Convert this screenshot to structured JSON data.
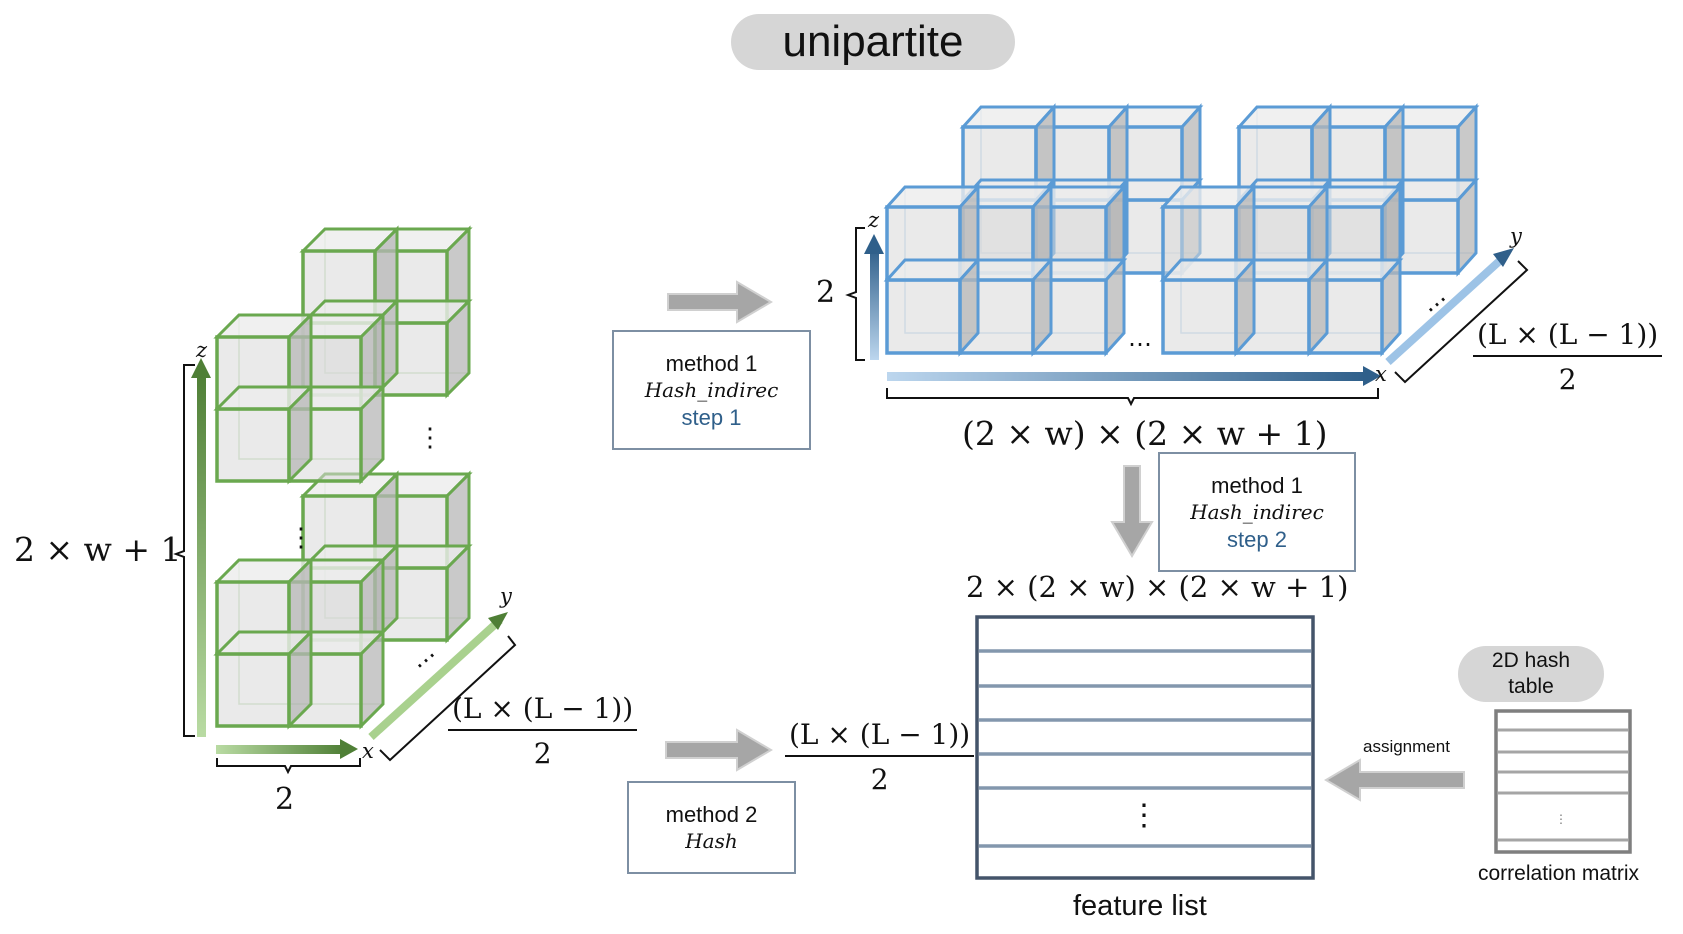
{
  "title": "unipartite",
  "method1_step1": {
    "method": "method 1",
    "func": "Hash_indirec",
    "step": "step 1"
  },
  "method1_step2": {
    "method": "method 1",
    "func": "Hash_indirec",
    "step": "step 2"
  },
  "method2": {
    "method": "method 2",
    "func": "Hash"
  },
  "green_block": {
    "height_label": "2 × w + 1",
    "width_label": "2",
    "depth_fraction": {
      "numerator": "(L × (L − 1))",
      "denominator": "2"
    },
    "axes": {
      "x": "x",
      "y": "y",
      "z": "z"
    }
  },
  "blue_block": {
    "height_label": "2",
    "width_label": "(2 × w) × (2 × w + 1)",
    "depth_fraction": {
      "numerator": "(L × (L − 1))",
      "denominator": "2"
    },
    "axes": {
      "x": "x",
      "y": "y",
      "z": "z"
    }
  },
  "feature_list": {
    "label": "feature list",
    "columns_label": "2 × (2 × w) × (2 × w + 1)",
    "rows_fraction": {
      "numerator": "(L × (L − 1))",
      "denominator": "2"
    },
    "ellipsis": "⋮"
  },
  "hash_table": {
    "pill_line1": "2D hash",
    "pill_line2": "table",
    "label": "correlation matrix",
    "ellipsis": "⋮"
  },
  "assignment_label": "assignment",
  "ellipsis": "⋮",
  "h_ellipsis": "⋯",
  "colors": {
    "green_edge": "#6aa84f",
    "green_dark": "#4f7f36",
    "blue_edge": "#5b9bd5",
    "blue_dark": "#2f5f8a",
    "cube_fill": "#d9d9d9",
    "gray_arrow": "#a6a6a6",
    "table_border": "#44546a",
    "table_line": "#8397ad"
  }
}
